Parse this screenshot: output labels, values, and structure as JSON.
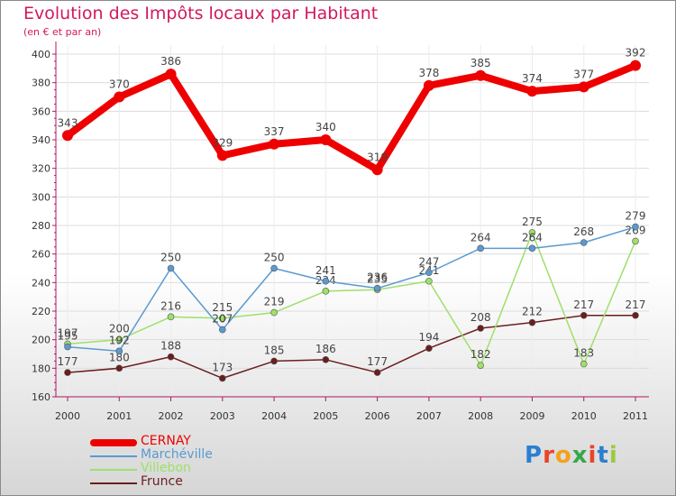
{
  "title": "Evolution des Impôts locaux par Habitant",
  "subtitle": "(en € et par an)",
  "logo_text": "Proxiti",
  "chart_data": {
    "type": "line",
    "title": "Evolution des Impôts locaux par Habitant",
    "subtitle": "(en € et par an)",
    "categories": [
      "2000",
      "2001",
      "2002",
      "2003",
      "2004",
      "2005",
      "2006",
      "2007",
      "2008",
      "2009",
      "2010",
      "2011"
    ],
    "ylim": [
      160,
      400
    ],
    "yticks": [
      160,
      180,
      200,
      220,
      240,
      260,
      280,
      300,
      320,
      340,
      360,
      380,
      400
    ],
    "grid": true,
    "legend_position": "bottom-left",
    "series": [
      {
        "name": "CERNAY",
        "color": "#ee0000",
        "values": [
          343,
          370,
          386,
          329,
          337,
          340,
          319,
          378,
          385,
          374,
          377,
          392
        ],
        "labels": [
          "343",
          "370",
          "386",
          "329",
          "337",
          "340",
          "319",
          "378",
          "385",
          "374",
          "377",
          "392"
        ]
      },
      {
        "name": "Marchéville",
        "color": "#5a9ad0",
        "values": [
          195,
          192,
          250,
          207,
          250,
          241,
          236,
          247,
          264,
          264,
          268,
          279
        ],
        "labels": [
          "195",
          "192",
          "250",
          "207",
          "250",
          "241",
          "236",
          "247",
          "264",
          "264",
          "268",
          "279"
        ]
      },
      {
        "name": "Villebon",
        "color": "#9ee06a",
        "values": [
          197,
          200,
          216,
          215,
          219,
          234,
          235,
          241,
          182,
          275,
          183,
          269
        ],
        "labels": [
          "197",
          "200",
          "216",
          "215",
          "219",
          "234",
          "235",
          "241",
          "182",
          "275",
          "183",
          "269"
        ]
      },
      {
        "name": "Frunce",
        "color": "#6b1e1e",
        "values": [
          177,
          180,
          188,
          173,
          185,
          186,
          177,
          194,
          208,
          212,
          217,
          217
        ],
        "labels": [
          "177",
          "180",
          "188",
          "173",
          "185",
          "186",
          "177",
          "194",
          "208",
          "212",
          "217",
          "217"
        ]
      }
    ]
  },
  "legend": [
    {
      "label": "CERNAY",
      "color": "#ee0000"
    },
    {
      "label": "Marchéville",
      "color": "#5a9ad0"
    },
    {
      "label": "Villebon",
      "color": "#9ee06a"
    },
    {
      "label": "Frunce",
      "color": "#6b1e1e"
    }
  ]
}
